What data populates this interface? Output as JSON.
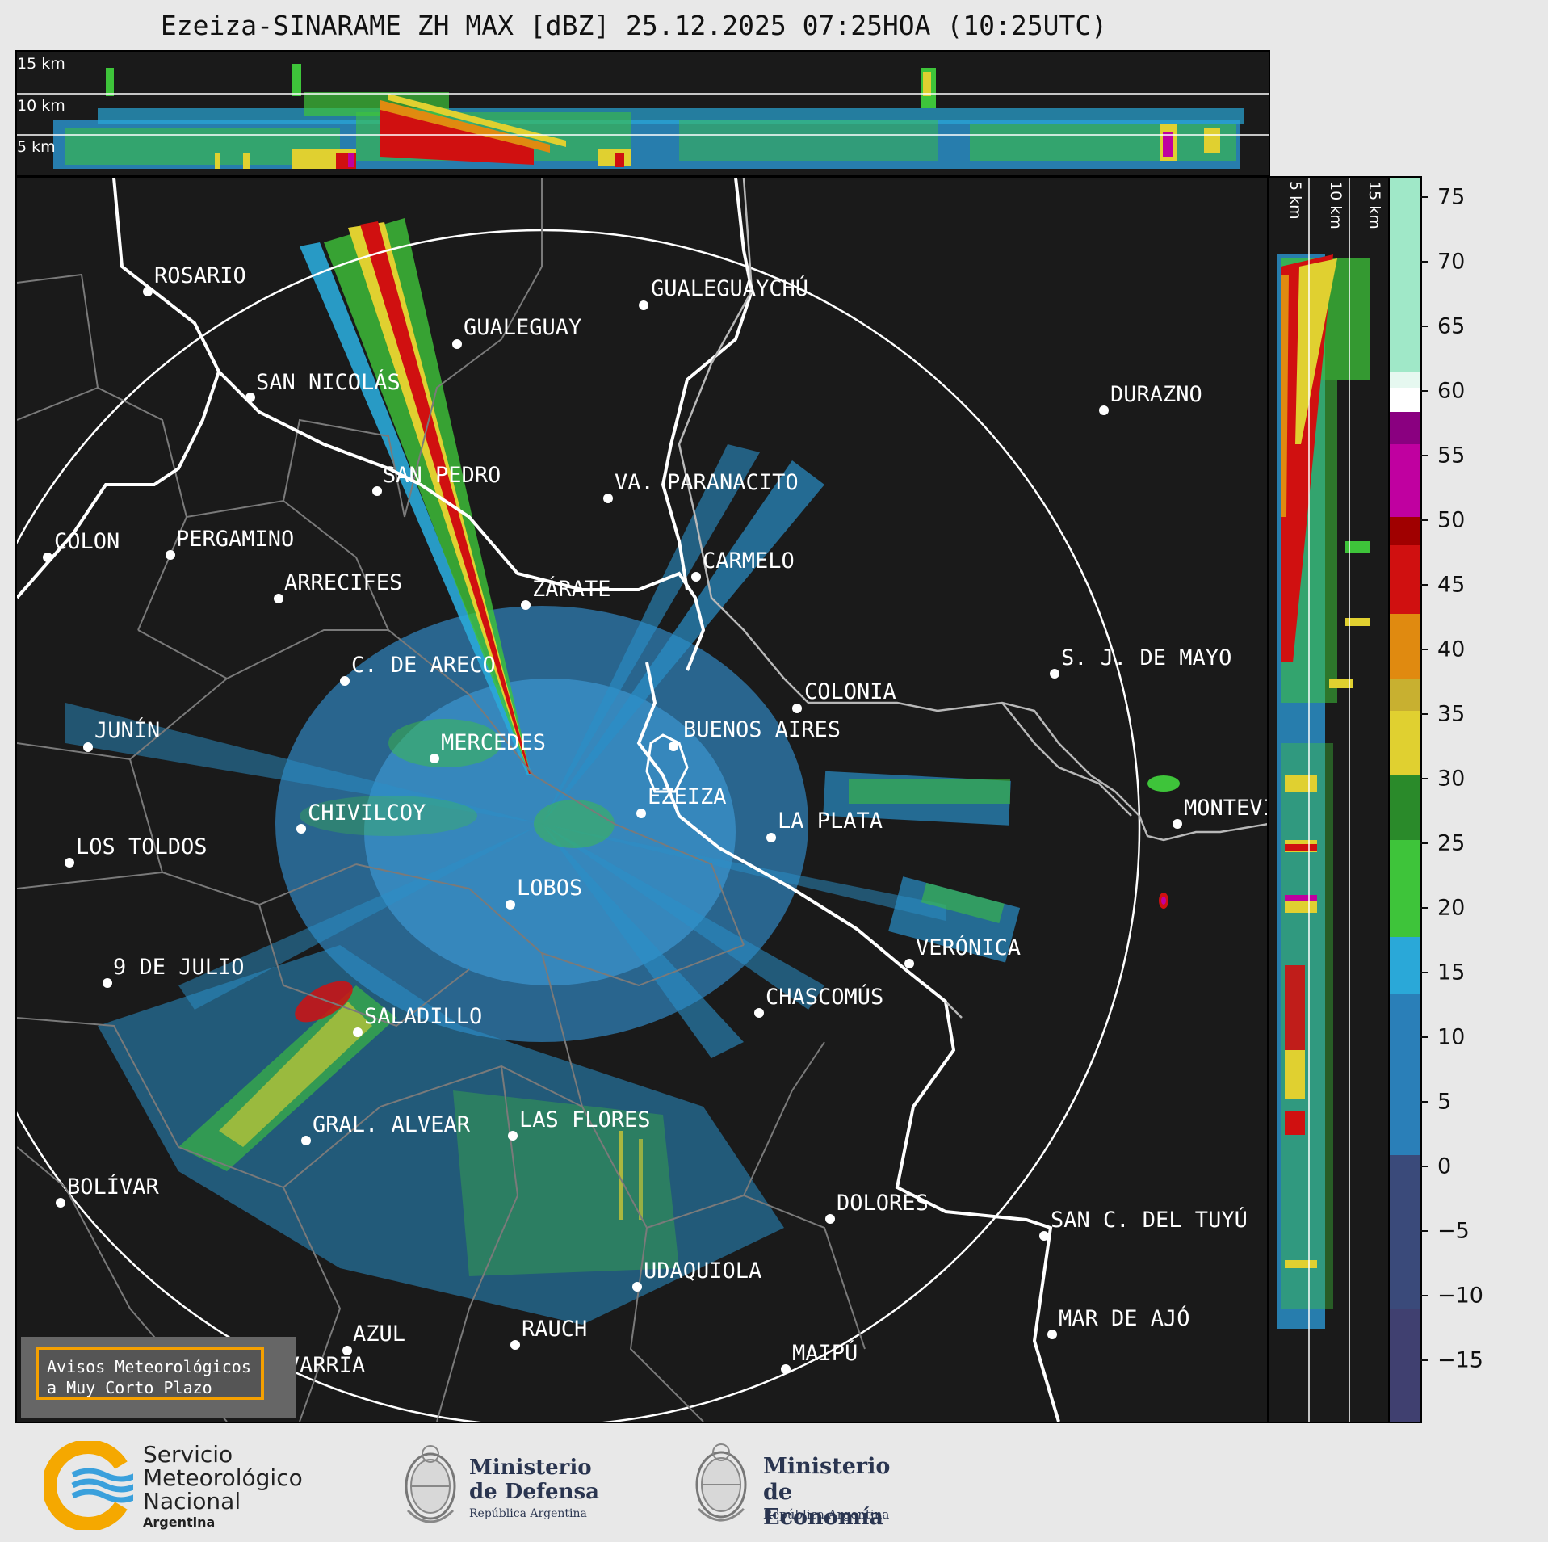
{
  "title": "Ezeiza-SINARAME ZH MAX [dBZ] 25.12.2025 07:25HOA (10:25UTC)",
  "top_panel": {
    "height_labels": [
      "15 km",
      "10 km",
      "5 km"
    ]
  },
  "right_panel": {
    "height_labels": [
      "5 km",
      "10 km",
      "15 km"
    ]
  },
  "colorbar": {
    "unit": "dBZ",
    "ticks": [
      "75",
      "70",
      "65",
      "60",
      "55",
      "50",
      "45",
      "40",
      "35",
      "30",
      "25",
      "20",
      "15",
      "10",
      "5",
      "0",
      "−5",
      "−10",
      "−15"
    ],
    "colors": {
      "below_0": "#3a4a7a",
      "0_to_15": "#2a7fb8",
      "15_to_20": "#2aa8d8",
      "20_to_30": "#3ec43a",
      "30_to_40": "#e0d030",
      "40_to_45": "#e08a10",
      "45_to_50": "#d01010",
      "50_to_58": "#c000a0",
      "58_to_62": "#ffffff",
      "above_62": "#a0e8c8"
    }
  },
  "map": {
    "places": [
      {
        "name": "ROSARIO"
      },
      {
        "name": "GUALEGUAYCHÚ"
      },
      {
        "name": "GUALEGUAY"
      },
      {
        "name": "SAN NICOLÁS"
      },
      {
        "name": "DURAZNO"
      },
      {
        "name": "SAN PEDRO"
      },
      {
        "name": "VA. PARANACITO"
      },
      {
        "name": "COLON"
      },
      {
        "name": "PERGAMINO"
      },
      {
        "name": "CARMELO"
      },
      {
        "name": "ARRECIFES"
      },
      {
        "name": "ZÁRATE"
      },
      {
        "name": "S. J. DE MAYO"
      },
      {
        "name": "C. DE ARECO"
      },
      {
        "name": "COLONIA"
      },
      {
        "name": "JUNÍN"
      },
      {
        "name": "BUENOS AIRES"
      },
      {
        "name": "MERCEDES"
      },
      {
        "name": "EZEIZA"
      },
      {
        "name": "MONTEVIDEO"
      },
      {
        "name": "CHIVILCOY"
      },
      {
        "name": "LA PLATA"
      },
      {
        "name": "LOS TOLDOS"
      },
      {
        "name": "LOBOS"
      },
      {
        "name": "VERÓNICA"
      },
      {
        "name": "9 DE JULIO"
      },
      {
        "name": "CHASCOMÚS"
      },
      {
        "name": "SALADILLO"
      },
      {
        "name": "GRAL. ALVEAR"
      },
      {
        "name": "LAS FLORES"
      },
      {
        "name": "BOLÍVAR"
      },
      {
        "name": "DOLORES"
      },
      {
        "name": "SAN C. DEL TUYÚ"
      },
      {
        "name": "UDAQUIOLA"
      },
      {
        "name": "AZUL"
      },
      {
        "name": "RAUCH"
      },
      {
        "name": "MAR DE AJÓ"
      },
      {
        "name": "OLAVARRÍA"
      },
      {
        "name": "MAIPÚ"
      }
    ],
    "warning_box": "Avisos Meteorológicos\na Muy Corto Plazo"
  },
  "footer": {
    "smn": {
      "line1": "Servicio",
      "line2": "Meteorológico",
      "line3": "Nacional",
      "line4": "Argentina"
    },
    "defensa": {
      "line1": "Ministerio",
      "line2": "de Defensa",
      "line3": "República Argentina"
    },
    "economia": {
      "line1": "Ministerio",
      "line2": "de Economía",
      "line3": "República Argentina"
    }
  }
}
